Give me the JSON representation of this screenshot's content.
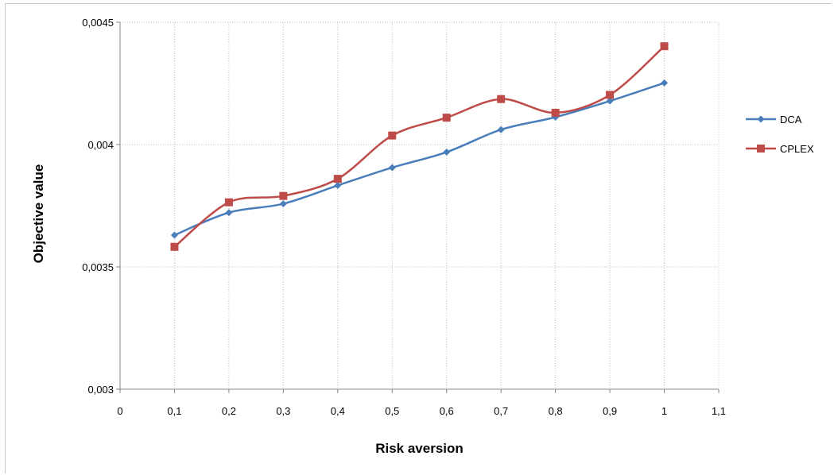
{
  "chart_data": {
    "type": "line",
    "title": "",
    "xlabel": "Risk aversion",
    "ylabel": "Objective value",
    "xlim": [
      0,
      1.1
    ],
    "ylim": [
      0.003,
      0.0045
    ],
    "xticks": [
      0,
      0.1,
      0.2,
      0.3,
      0.4,
      0.5,
      0.6,
      0.7,
      0.8,
      0.9,
      1,
      1.1
    ],
    "xtick_labels": [
      "0",
      "0,1",
      "0,2",
      "0,3",
      "0,4",
      "0,5",
      "0,6",
      "0,7",
      "0,8",
      "0,9",
      "1",
      "1,1"
    ],
    "yticks": [
      0.003,
      0.0035,
      0.004,
      0.0045
    ],
    "ytick_labels": [
      "0,003",
      "0,0035",
      "0,004",
      "0,0045"
    ],
    "grid": true,
    "smoothed": true,
    "legend_position": "right",
    "x": [
      0.1,
      0.2,
      0.3,
      0.4,
      0.5,
      0.6,
      0.7,
      0.8,
      0.9,
      1
    ],
    "series": [
      {
        "name": "DCA",
        "color": "#4a7ebb",
        "marker": "diamond",
        "values": [
          0.00363,
          0.003722,
          0.003758,
          0.003833,
          0.003906,
          0.003969,
          0.004061,
          0.004112,
          0.004178,
          0.004252
        ]
      },
      {
        "name": "CPLEX",
        "color": "#be4b48",
        "marker": "square",
        "values": [
          0.003582,
          0.003764,
          0.00379,
          0.00386,
          0.004037,
          0.00411,
          0.004186,
          0.00413,
          0.004203,
          0.004402
        ]
      }
    ]
  }
}
